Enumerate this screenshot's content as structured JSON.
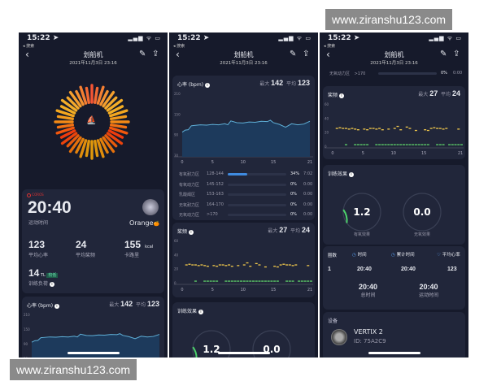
{
  "watermark": "www.ziranshu123.com",
  "status": {
    "time": "15:22 ➤",
    "back_app": "◂ 搜索",
    "icons": "▂▄▆ ᯤ ▭"
  },
  "nav": {
    "title": "划船机",
    "date": "2021年11月3日 23:16",
    "back": "‹",
    "edit_icon": "✎",
    "share_icon": "⇪"
  },
  "summary": {
    "brand": "COROS",
    "duration": "20:40",
    "duration_label": "运动时间",
    "user": "Orange",
    "user_emoji": "🍊",
    "stats": [
      {
        "value": "123",
        "unit": "",
        "label": "平均心率"
      },
      {
        "value": "24",
        "unit": "",
        "label": "平均桨频"
      },
      {
        "value": "155",
        "unit": "kcal",
        "label": "卡路里"
      }
    ],
    "load": {
      "value": "14",
      "unit": "TL",
      "badge": "较低",
      "label": "训练负荷"
    }
  },
  "hr": {
    "title": "心率 (bpm)",
    "max_label": "最大",
    "max": "142",
    "avg_label": "平均",
    "avg": "123",
    "yticks": [
      "210",
      "150",
      "90",
      "30"
    ],
    "xticks": [
      "0",
      "5",
      "10",
      "15",
      "21"
    ]
  },
  "zones": [
    {
      "name": "有氧耐力区",
      "range": "128-144",
      "percent": 34,
      "percent_label": "34%",
      "time": "7:02"
    },
    {
      "name": "有氧动力区",
      "range": "145-152",
      "percent": 0,
      "percent_label": "0%",
      "time": "0:00"
    },
    {
      "name": "乳酸阈区",
      "range": "153-163",
      "percent": 0,
      "percent_label": "0%",
      "time": "0:00"
    },
    {
      "name": "无氧耐力区",
      "range": "164-170",
      "percent": 0,
      "percent_label": "0%",
      "time": "0:00"
    },
    {
      "name": "无氧动力区",
      "range": ">170",
      "percent": 0,
      "percent_label": "0%",
      "time": "0:00"
    }
  ],
  "cadence": {
    "title": "桨频",
    "max_label": "最大",
    "max": "27",
    "avg_label": "平均",
    "avg": "24",
    "yticks": [
      "60",
      "40",
      "20",
      "0"
    ],
    "xticks": [
      "0",
      "5",
      "10",
      "15",
      "21"
    ]
  },
  "effect": {
    "title": "训练效果",
    "aerobic": "1.2",
    "aerobic_label": "有氧效果",
    "anaerobic": "0.0",
    "anaerobic_label": "无氧效果",
    "aerobic_fraction": 0.24
  },
  "laps": {
    "headers": [
      "圈数",
      "时间",
      "累计时间",
      "平均心率"
    ],
    "rows": [
      [
        "1",
        "20:40",
        "20:40",
        "123"
      ]
    ],
    "total_time": "20:40",
    "total_time_label": "总时间",
    "moving_time": "20:40",
    "moving_time_label": "运动时间"
  },
  "device": {
    "title": "设备",
    "name": "VERTIX 2",
    "id": "ID: 75A2C9"
  },
  "chart_data": [
    {
      "type": "area",
      "ylabel": "心率 (bpm)",
      "xlim": [
        0,
        21
      ],
      "ylim": [
        30,
        210
      ],
      "x": [
        0,
        0.5,
        1,
        1.5,
        2,
        3,
        4,
        5,
        6,
        7,
        7.5,
        8,
        9,
        10,
        11,
        12,
        13,
        14,
        14.5,
        15,
        16,
        17,
        18,
        19,
        20,
        21
      ],
      "values": [
        100,
        106,
        107,
        118,
        119,
        121,
        120,
        122,
        121,
        124,
        121,
        132,
        127,
        126,
        129,
        128,
        131,
        130,
        134,
        127,
        122,
        114,
        124,
        121,
        123,
        131
      ]
    },
    {
      "type": "scatter",
      "ylabel": "桨频",
      "xlim": [
        0,
        21
      ],
      "ylim": [
        0,
        60
      ],
      "series": [
        {
          "x": [
            0.5,
            1,
            1.5,
            2,
            2.5,
            3,
            3.5,
            4,
            5,
            5.5,
            6,
            6.5,
            7,
            7.5,
            8,
            9,
            10,
            10.5,
            11,
            12,
            12.5,
            13.5,
            15,
            15.5,
            16,
            16.5,
            17,
            17.5,
            18,
            18.5,
            20.5
          ],
          "values": [
            24,
            25,
            24,
            24,
            23,
            24,
            23,
            22,
            23,
            22,
            24,
            24,
            23,
            24,
            22,
            23,
            24,
            27,
            22,
            26,
            24,
            21,
            22,
            21,
            24,
            25,
            24,
            24,
            23,
            24,
            23
          ],
          "color": "#f2c94c"
        },
        {
          "x": [
            2,
            3.5,
            4,
            4.5,
            5,
            5.5,
            7,
            7.5,
            8,
            8.5,
            9,
            9.5,
            10,
            10.5,
            11,
            11.5,
            12,
            12.5,
            13,
            13.5,
            14,
            14.5,
            15,
            15.5,
            17,
            17.5,
            18,
            19,
            19.5,
            20,
            20.5,
            21
          ],
          "values": [
            0,
            0,
            0,
            0,
            0,
            0,
            0,
            0,
            0,
            0,
            0,
            0,
            0,
            0,
            0,
            0,
            0,
            0,
            0,
            0,
            0,
            0,
            0,
            0,
            0,
            0,
            0,
            0,
            0,
            0,
            0,
            0
          ],
          "color": "#5fd36a"
        }
      ]
    }
  ]
}
